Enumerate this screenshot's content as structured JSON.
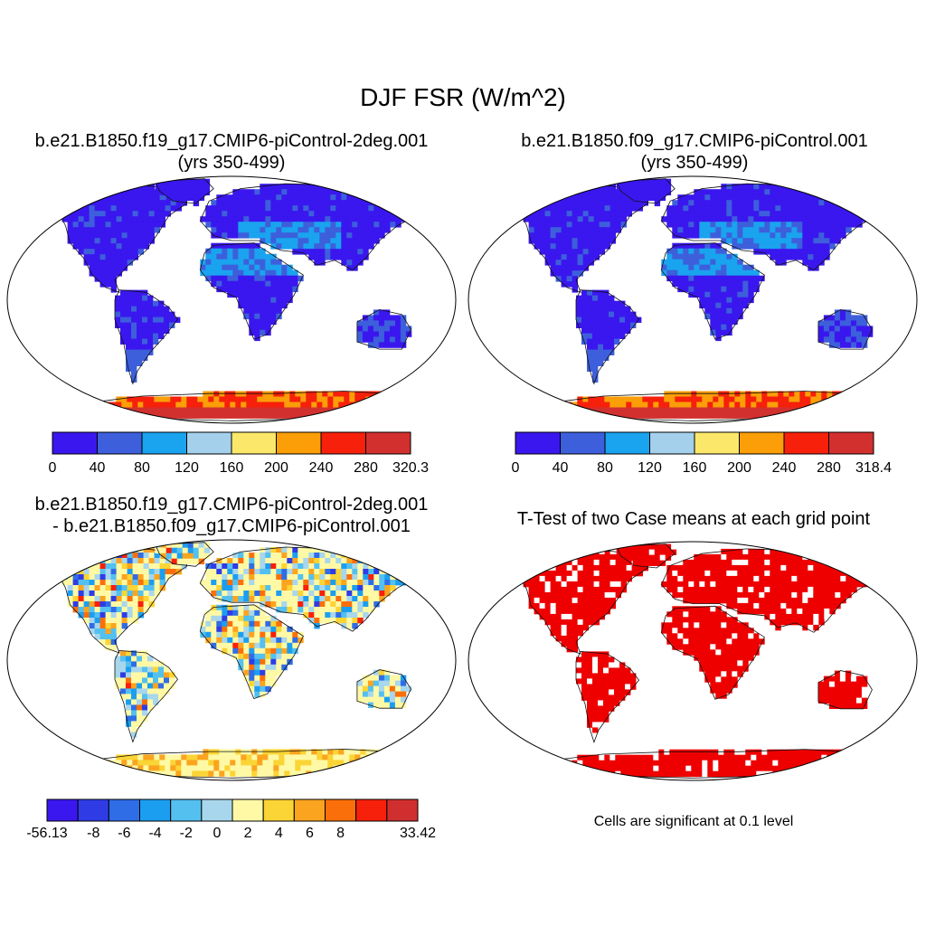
{
  "figure": {
    "title": "DJF FSR (W/m^2)"
  },
  "panels": [
    {
      "id": "case1",
      "title_line1": "b.e21.B1850.f19_g17.CMIP6-piControl-2deg.001",
      "title_line2": "(yrs 350-499)",
      "colorbar": {
        "colors": [
          "#3a17ee",
          "#3d5fdc",
          "#1aa3ee",
          "#a4d0ec",
          "#fbe86b",
          "#fb9e08",
          "#f6200b",
          "#d2302e"
        ],
        "tick_labels": [
          "0",
          "40",
          "80",
          "120",
          "160",
          "200",
          "240",
          "280",
          "320.3"
        ]
      }
    },
    {
      "id": "case2",
      "title_line1": "b.e21.B1850.f09_g17.CMIP6-piControl.001",
      "title_line2": "(yrs 350-499)",
      "colorbar": {
        "colors": [
          "#3a17ee",
          "#3d5fdc",
          "#1aa3ee",
          "#a4d0ec",
          "#fbe86b",
          "#fb9e08",
          "#f6200b",
          "#d2302e"
        ],
        "tick_labels": [
          "0",
          "40",
          "80",
          "120",
          "160",
          "200",
          "240",
          "280",
          "318.4"
        ]
      }
    },
    {
      "id": "difference",
      "title_line1": "b.e21.B1850.f19_g17.CMIP6-piControl-2deg.001",
      "title_line2": "- b.e21.B1850.f09_g17.CMIP6-piControl.001",
      "colorbar": {
        "colors": [
          "#3a17ee",
          "#2f3ce6",
          "#2f6de6",
          "#1c9ef0",
          "#53c0f0",
          "#a8d6ec",
          "#fff9a5",
          "#fbd435",
          "#fba41f",
          "#fb6f0a",
          "#f6200b",
          "#d02f2f"
        ],
        "tick_labels": [
          "-56.13",
          "-8",
          "-6",
          "-4",
          "-2",
          "0",
          "2",
          "4",
          "6",
          "8",
          "33.42"
        ]
      }
    },
    {
      "id": "ttest",
      "title_line1": "T-Test of two Case means at each grid point",
      "note": "Cells are significant at 0.1 level",
      "fill_color": "#ee0000"
    }
  ]
}
